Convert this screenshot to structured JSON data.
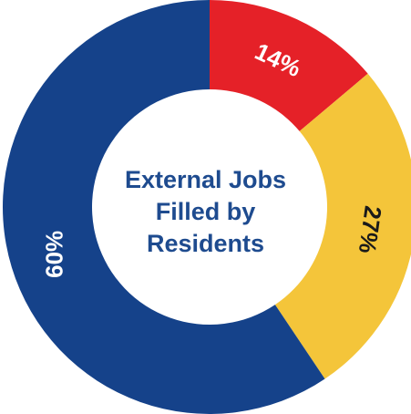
{
  "chart_data": {
    "type": "pie",
    "donut": true,
    "title_lines": [
      "External Jobs",
      "Filled by",
      "Residents"
    ],
    "categories": [
      "",
      "",
      ""
    ],
    "values": [
      14,
      27,
      60
    ],
    "labels": [
      "14%",
      "27%",
      "60%"
    ],
    "colors": [
      "#e52128",
      "#f4c53a",
      "#15428a"
    ],
    "label_colors": [
      "#ffffff",
      "#1a1a1a",
      "#ffffff"
    ],
    "start_angle_deg": 0,
    "direction": "clockwise",
    "legend": "none"
  }
}
